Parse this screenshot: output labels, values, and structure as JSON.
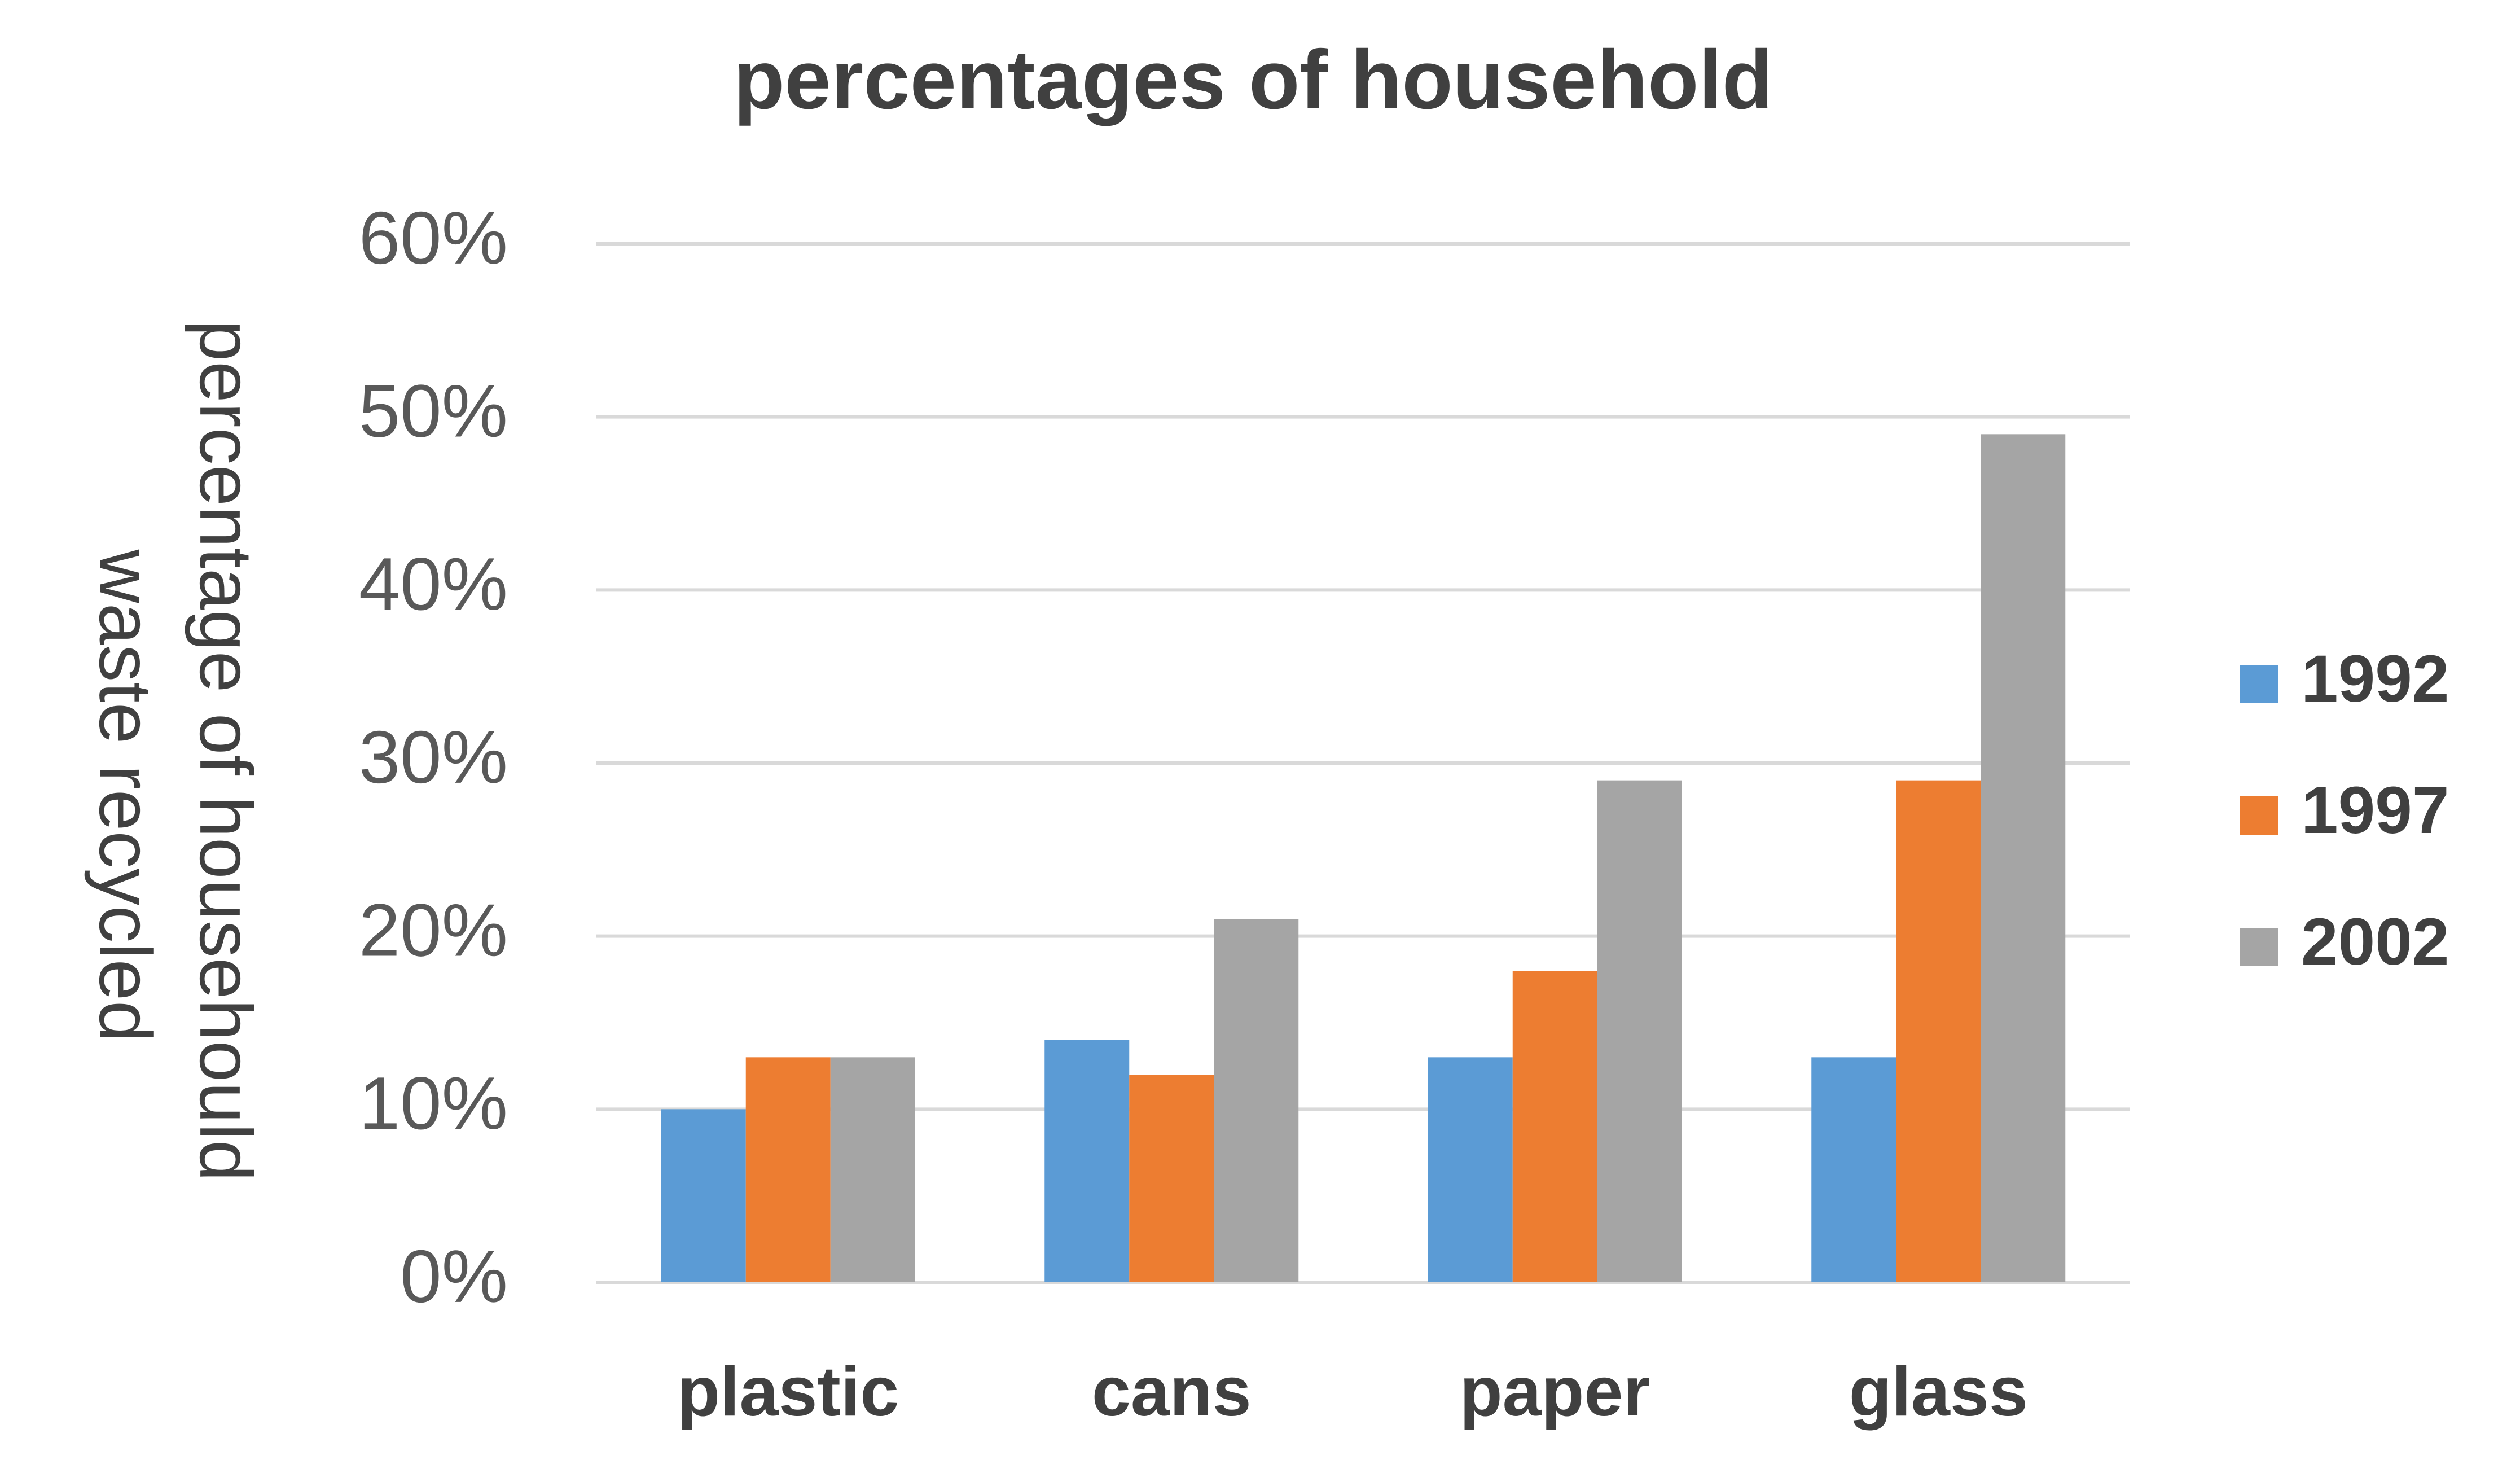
{
  "chart_data": {
    "type": "bar",
    "title": "percentages of household",
    "ylabel": "percentage of househould waste recycled",
    "ylabel_lines": [
      "percentage of househould",
      "waste recycled"
    ],
    "xlabel": "",
    "categories": [
      "plastic",
      "cans",
      "paper",
      "glass"
    ],
    "series": [
      {
        "name": "1992",
        "color": "#5b9bd5",
        "values": [
          10,
          14,
          13,
          13
        ]
      },
      {
        "name": "1997",
        "color": "#ed7d31",
        "values": [
          13,
          12,
          18,
          29
        ]
      },
      {
        "name": "2002",
        "color": "#a5a5a5",
        "values": [
          13,
          21,
          29,
          49
        ]
      }
    ],
    "ylim": [
      0,
      60
    ],
    "yticks": [
      0,
      10,
      20,
      30,
      40,
      50,
      60
    ],
    "ytick_labels": [
      "0%",
      "10%",
      "20%",
      "30%",
      "40%",
      "50%",
      "60%"
    ],
    "grid": true,
    "legend_position": "right",
    "gridline_color": "#d9d9d9"
  }
}
